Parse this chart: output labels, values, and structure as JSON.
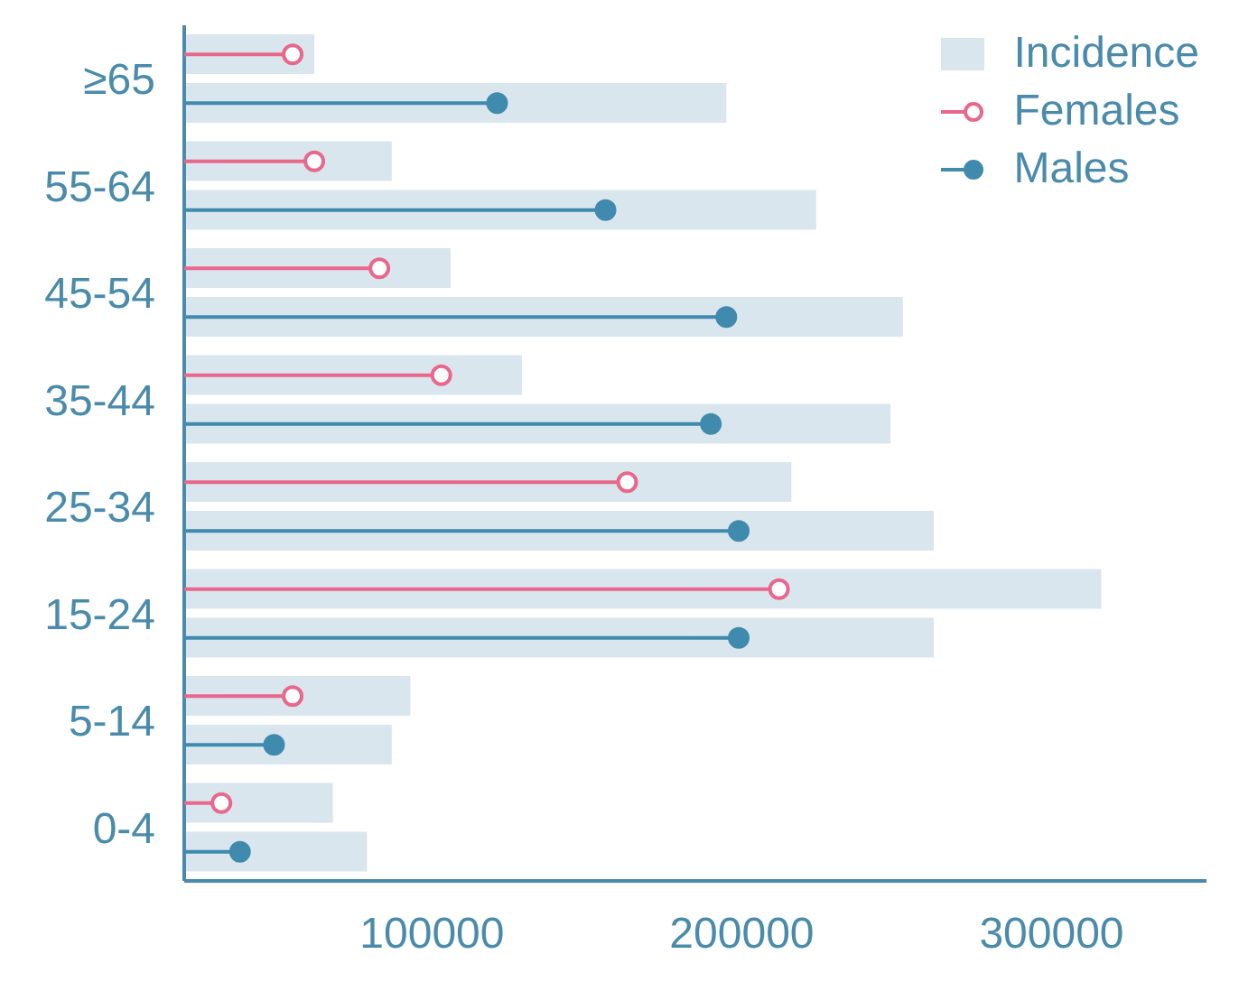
{
  "chart_data": {
    "type": "bar",
    "orientation": "horizontal",
    "categories": [
      "≥65",
      "55-64",
      "45-54",
      "35-44",
      "25-34",
      "15-24",
      "5-14",
      "0-4"
    ],
    "series": [
      {
        "name": "Incidence",
        "color": "#dae6ed",
        "values": [
          62000,
          87000,
          106000,
          129000,
          216000,
          316000,
          93000,
          68000
        ]
      },
      {
        "color": "#dae6ed",
        "values": [
          195000,
          224000,
          252000,
          248000,
          262000,
          262000,
          87000,
          79000
        ]
      },
      {
        "name": "Females",
        "type": "lollipop",
        "color": "#e8678b",
        "values": [
          55000,
          62000,
          83000,
          103000,
          163000,
          212000,
          55000,
          32000
        ]
      },
      {
        "name": "Males",
        "type": "lollipop",
        "color": "#3f8aad",
        "values": [
          121000,
          156000,
          195000,
          190000,
          199000,
          199000,
          49000,
          38000
        ]
      }
    ],
    "xlim": [
      20000,
      350000
    ],
    "xticks": [
      100000,
      200000,
      300000
    ],
    "marker": "circle",
    "legend": "top right"
  }
}
